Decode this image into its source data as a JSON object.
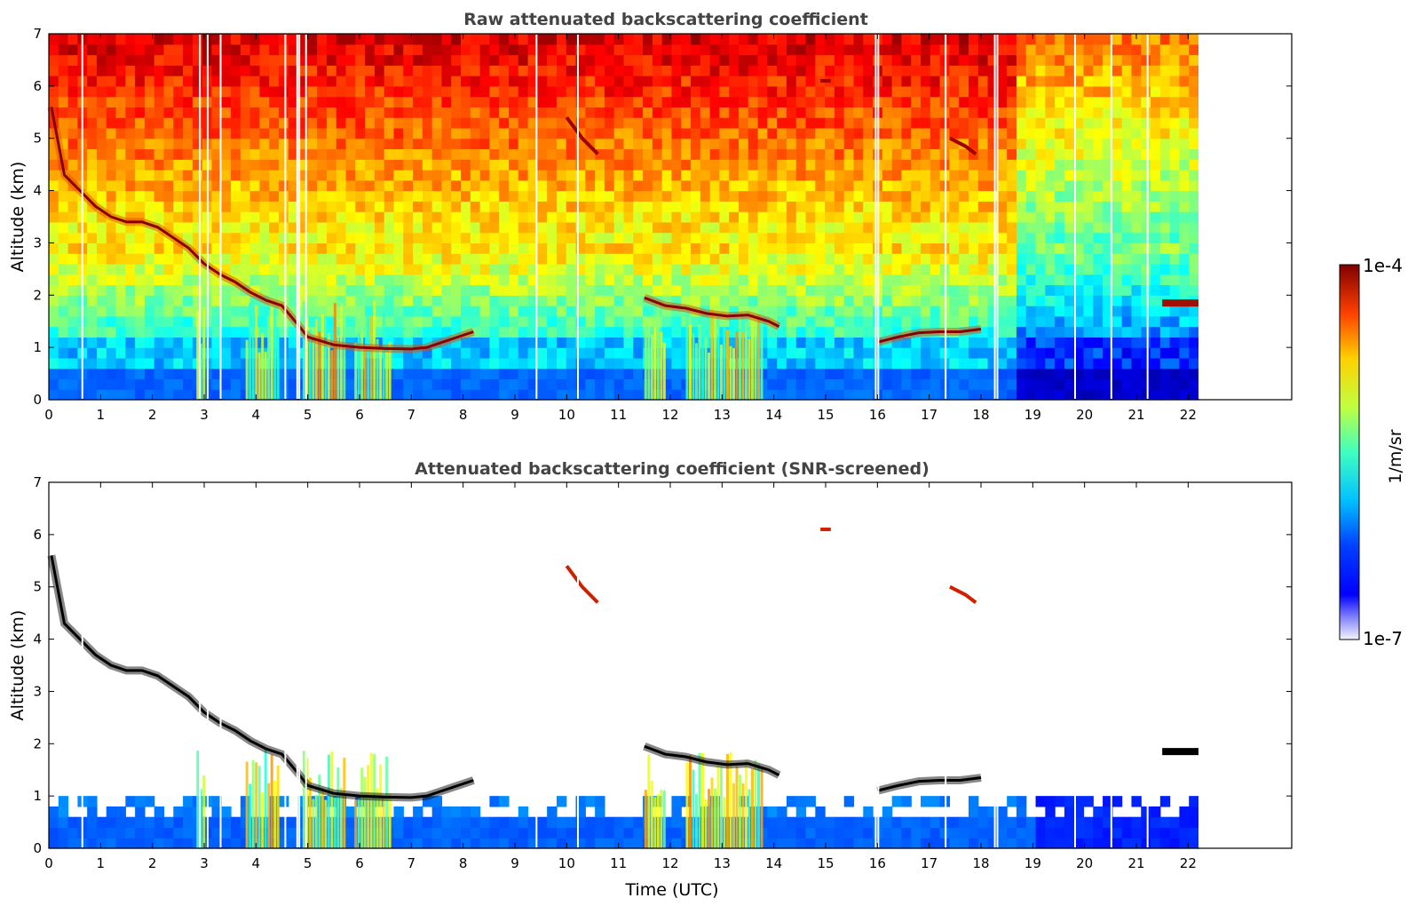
{
  "chart_data": [
    {
      "type": "heatmap",
      "title": "Raw attenuated backscattering coefficient",
      "xlabel": "",
      "ylabel": "Altitude (km)",
      "xlim": [
        0,
        24
      ],
      "ylim": [
        0,
        7
      ],
      "x_ticks": [
        "0",
        "1",
        "2",
        "3",
        "4",
        "5",
        "6",
        "7",
        "8",
        "9",
        "10",
        "11",
        "12",
        "13",
        "14",
        "15",
        "16",
        "17",
        "18",
        "19",
        "20",
        "21",
        "22"
      ],
      "y_ticks": [
        "0",
        "1",
        "2",
        "3",
        "4",
        "5",
        "6",
        "7"
      ],
      "data_end_time": 22.2,
      "cloud_layer": {
        "x": [
          0.05,
          0.3,
          0.6,
          0.9,
          1.2,
          1.5,
          1.8,
          2.1,
          2.4,
          2.7,
          3.0,
          3.3,
          3.6,
          3.9,
          4.2,
          4.5,
          4.8,
          5.0,
          5.5,
          6.0,
          6.5,
          7.0,
          7.3,
          7.6,
          7.9,
          8.2,
          11.5,
          11.9,
          12.3,
          12.7,
          13.1,
          13.5,
          13.9,
          14.1,
          16.0,
          16.4,
          16.8,
          17.2,
          17.6,
          18.0
        ],
        "y": [
          5.6,
          4.3,
          4.0,
          3.7,
          3.5,
          3.4,
          3.4,
          3.3,
          3.1,
          2.9,
          2.6,
          2.4,
          2.25,
          2.05,
          1.9,
          1.8,
          1.45,
          1.2,
          1.05,
          1.0,
          0.98,
          0.97,
          1.0,
          1.1,
          1.2,
          1.3,
          1.95,
          1.8,
          1.75,
          1.65,
          1.6,
          1.62,
          1.5,
          1.4,
          1.1,
          1.2,
          1.28,
          1.3,
          1.3,
          1.35
        ]
      },
      "high_cloud_features": [
        {
          "x": [
            10.0,
            10.3,
            10.6
          ],
          "y": [
            5.4,
            5.0,
            4.7
          ]
        },
        {
          "x": [
            17.4,
            17.7,
            17.9
          ],
          "y": [
            5.0,
            4.85,
            4.7
          ]
        },
        {
          "x": [
            14.9,
            15.1
          ],
          "y": [
            6.1,
            6.1
          ]
        }
      ],
      "elevated_layer": {
        "x": [
          21.5,
          22.2
        ],
        "y": [
          1.85,
          1.85
        ]
      }
    },
    {
      "type": "heatmap",
      "title": "Attenuated backscattering coefficient (SNR-screened)",
      "xlabel": "Time (UTC)",
      "ylabel": "Altitude (km)",
      "xlim": [
        0,
        24
      ],
      "ylim": [
        0,
        7
      ],
      "x_ticks": [
        "0",
        "1",
        "2",
        "3",
        "4",
        "5",
        "6",
        "7",
        "8",
        "9",
        "10",
        "11",
        "12",
        "13",
        "14",
        "15",
        "16",
        "17",
        "18",
        "19",
        "20",
        "21",
        "22"
      ],
      "y_ticks": [
        "0",
        "1",
        "2",
        "3",
        "4",
        "5",
        "6",
        "7"
      ],
      "data_end_time": 22.2
    }
  ],
  "colorbar": {
    "colormap": "jet",
    "label": "1/m/sr",
    "max_label": "1e-4",
    "min_label": "1e-7",
    "scale": "log",
    "range": [
      1e-07,
      0.0001
    ]
  }
}
